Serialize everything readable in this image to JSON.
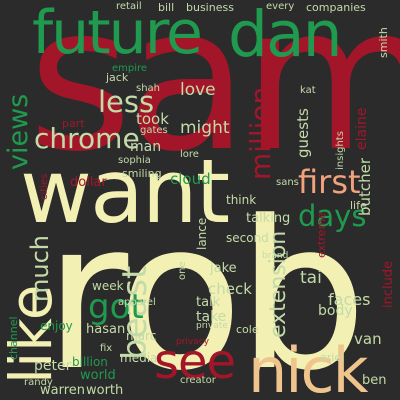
{
  "words": [
    {
      "text": "sam",
      "color": "#a3162a"
    },
    {
      "text": "rob",
      "color": "#f3f0b4"
    },
    {
      "text": "want",
      "color": "#f3f0b4"
    },
    {
      "text": "future",
      "color": "#1f9a4f"
    },
    {
      "text": "dan",
      "color": "#1f9a4f"
    },
    {
      "text": "like",
      "color": "#f3f0b4"
    },
    {
      "text": "nick",
      "color": "#f0c58d"
    },
    {
      "text": "see",
      "color": "#a3162a"
    },
    {
      "text": "beast",
      "color": "#c3dba8"
    },
    {
      "text": "got",
      "color": "#1f9a4f"
    },
    {
      "text": "first",
      "color": "#f2a27c"
    },
    {
      "text": "days",
      "color": "#1f9a4f"
    },
    {
      "text": "views",
      "color": "#1f9a4f"
    },
    {
      "text": "chrome",
      "color": "#c3dba8"
    },
    {
      "text": "less",
      "color": "#c3dba8"
    },
    {
      "text": "million",
      "color": "#a3162a"
    },
    {
      "text": "much",
      "color": "#c3dba8"
    },
    {
      "text": "extension",
      "color": "#c3dba8"
    },
    {
      "text": "might",
      "color": "#c3dba8"
    },
    {
      "text": "man",
      "color": "#c3dba8"
    },
    {
      "text": "cloud",
      "color": "#1f9a4f"
    },
    {
      "text": "love",
      "color": "#c3dba8"
    },
    {
      "text": "took",
      "color": "#c3dba8"
    },
    {
      "text": "elaine",
      "color": "#a3162a"
    },
    {
      "text": "butcher",
      "color": "#c3dba8"
    },
    {
      "text": "guests",
      "color": "#c3dba8"
    },
    {
      "text": "talking",
      "color": "#c3dba8"
    },
    {
      "text": "check",
      "color": "#c3dba8"
    },
    {
      "text": "talk",
      "color": "#c3dba8"
    },
    {
      "text": "take",
      "color": "#c3dba8"
    },
    {
      "text": "jake",
      "color": "#c3dba8"
    },
    {
      "text": "tai",
      "color": "#c3dba8"
    },
    {
      "text": "faces",
      "color": "#c3dba8"
    },
    {
      "text": "body",
      "color": "#c3dba8"
    },
    {
      "text": "van",
      "color": "#c3dba8"
    },
    {
      "text": "ben",
      "color": "#c3dba8"
    },
    {
      "text": "ariel",
      "color": "#c3dba8"
    },
    {
      "text": "include",
      "color": "#a3162a"
    },
    {
      "text": "peter",
      "color": "#c3dba8"
    },
    {
      "text": "warren",
      "color": "#c3dba8"
    },
    {
      "text": "worth",
      "color": "#c3dba8"
    },
    {
      "text": "media",
      "color": "#c3dba8"
    },
    {
      "text": "hasan",
      "color": "#c3dba8"
    },
    {
      "text": "week",
      "color": "#c3dba8"
    },
    {
      "text": "marc",
      "color": "#c3dba8"
    },
    {
      "text": "world",
      "color": "#1f9a4f"
    },
    {
      "text": "billion",
      "color": "#1f9a4f"
    },
    {
      "text": "enjoy",
      "color": "#1f9a4f"
    },
    {
      "text": "channel",
      "color": "#1f9a4f"
    },
    {
      "text": "dollar",
      "color": "#a3162a"
    },
    {
      "text": "smiling",
      "color": "#c3dba8"
    },
    {
      "text": "sophia",
      "color": "#c3dba8"
    },
    {
      "text": "jack",
      "color": "#c3dba8"
    },
    {
      "text": "shah",
      "color": "#c3dba8"
    },
    {
      "text": "empire",
      "color": "#1f9a4f"
    },
    {
      "text": "business",
      "color": "#c3dba8"
    },
    {
      "text": "companies",
      "color": "#c3dba8"
    },
    {
      "text": "every",
      "color": "#c3dba8"
    },
    {
      "text": "retail",
      "color": "#c3dba8"
    },
    {
      "text": "bill",
      "color": "#c3dba8"
    },
    {
      "text": "kat",
      "color": "#c3dba8"
    },
    {
      "text": "second",
      "color": "#c3dba8"
    },
    {
      "text": "life",
      "color": "#c3dba8"
    },
    {
      "text": "think",
      "color": "#c3dba8"
    },
    {
      "text": "lance",
      "color": "#c3dba8"
    },
    {
      "text": "one",
      "color": "#c3dba8"
    },
    {
      "text": "cole",
      "color": "#c3dba8"
    },
    {
      "text": "gates",
      "color": "#c3dba8"
    },
    {
      "text": "randy",
      "color": "#c3dba8"
    },
    {
      "text": "apparel",
      "color": "#c3dba8"
    },
    {
      "text": "creator",
      "color": "#c3dba8"
    },
    {
      "text": "extreme",
      "color": "#a3162a"
    },
    {
      "text": "lore",
      "color": "#c3dba8"
    },
    {
      "text": "sans",
      "color": "#c3dba8"
    },
    {
      "text": "cities",
      "color": "#a3162a"
    },
    {
      "text": "privacy",
      "color": "#a3162a"
    },
    {
      "text": "private",
      "color": "#c3dba8"
    },
    {
      "text": "insights",
      "color": "#c3dba8"
    },
    {
      "text": "smith",
      "color": "#c3dba8"
    },
    {
      "text": "brand",
      "color": "#c3dba8"
    },
    {
      "text": "fix",
      "color": "#c3dba8"
    },
    {
      "text": "part",
      "color": "#a3162a"
    }
  ]
}
